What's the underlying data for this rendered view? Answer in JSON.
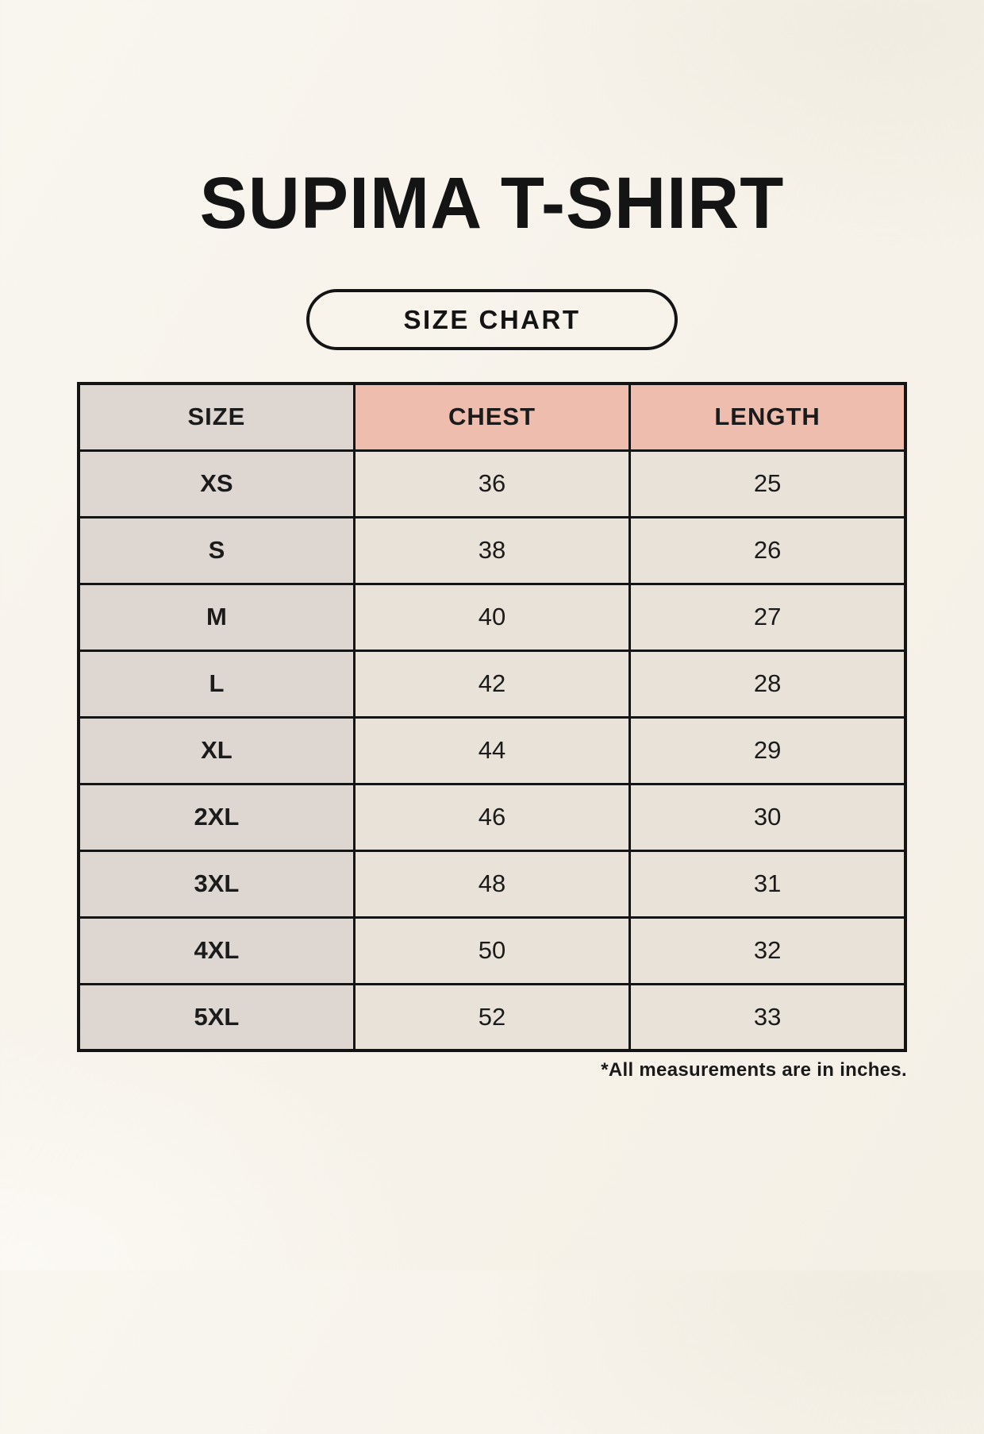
{
  "page": {
    "title": "SUPIMA T-SHIRT",
    "button_label": "SIZE CHART",
    "footnote": "*All measurements are in inches."
  },
  "table": {
    "headers": [
      "SIZE",
      "CHEST",
      "LENGTH"
    ],
    "rows": [
      {
        "size": "XS",
        "chest": "36",
        "length": "25"
      },
      {
        "size": "S",
        "chest": "38",
        "length": "26"
      },
      {
        "size": "M",
        "chest": "40",
        "length": "27"
      },
      {
        "size": "L",
        "chest": "42",
        "length": "28"
      },
      {
        "size": "XL",
        "chest": "44",
        "length": "29"
      },
      {
        "size": "2XL",
        "chest": "46",
        "length": "30"
      },
      {
        "size": "3XL",
        "chest": "48",
        "length": "31"
      },
      {
        "size": "4XL",
        "chest": "50",
        "length": "32"
      },
      {
        "size": "5XL",
        "chest": "52",
        "length": "33"
      }
    ],
    "units": "inches"
  },
  "colors": {
    "background": "#f7f3eb",
    "header_accent": "#eebdae",
    "size_column": "#ddd6d1",
    "data_cell": "#e9e2d8",
    "border": "#141414",
    "text": "#1a1a1a"
  }
}
